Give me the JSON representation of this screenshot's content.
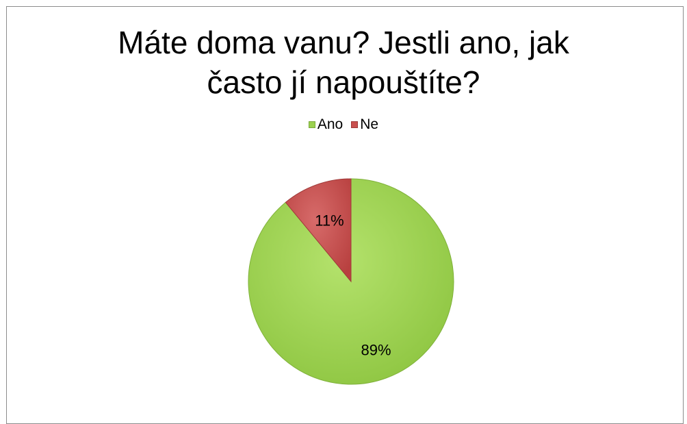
{
  "chart_data": {
    "type": "pie",
    "title": "Máte doma vanu? Jestli ano, jak často jí napouštíte?",
    "title_lines": [
      "Máte doma vanu? Jestli ano, jak",
      "často jí napouštíte?"
    ],
    "legend_position": "top",
    "categories": [
      "Ano",
      "Ne"
    ],
    "values": [
      89,
      11
    ],
    "data_labels": [
      "89%",
      "11%"
    ],
    "colors": [
      "#9bd14f",
      "#c9504f"
    ]
  }
}
